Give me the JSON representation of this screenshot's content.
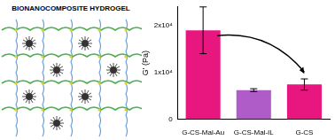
{
  "diagram": {
    "title": "BIONANOCOMPOSITE HYDROGEL"
  },
  "chart_data": {
    "type": "bar",
    "y_label": "G' (Pa)",
    "categories": [
      "G-CS-Mal-Au",
      "G-CS-Mal-IL",
      "G-CS"
    ],
    "values": [
      19000,
      6200,
      7400
    ],
    "errors": [
      5000,
      300,
      1200
    ],
    "colors": [
      "#e8177f",
      "#b05cc8",
      "#e8177f"
    ],
    "ylim": [
      0,
      24000
    ],
    "yticks": [
      0,
      {
        "value": 10000,
        "label": "1x10⁴"
      },
      {
        "value": 20000,
        "label": "2x10⁴"
      }
    ],
    "grid": false
  }
}
